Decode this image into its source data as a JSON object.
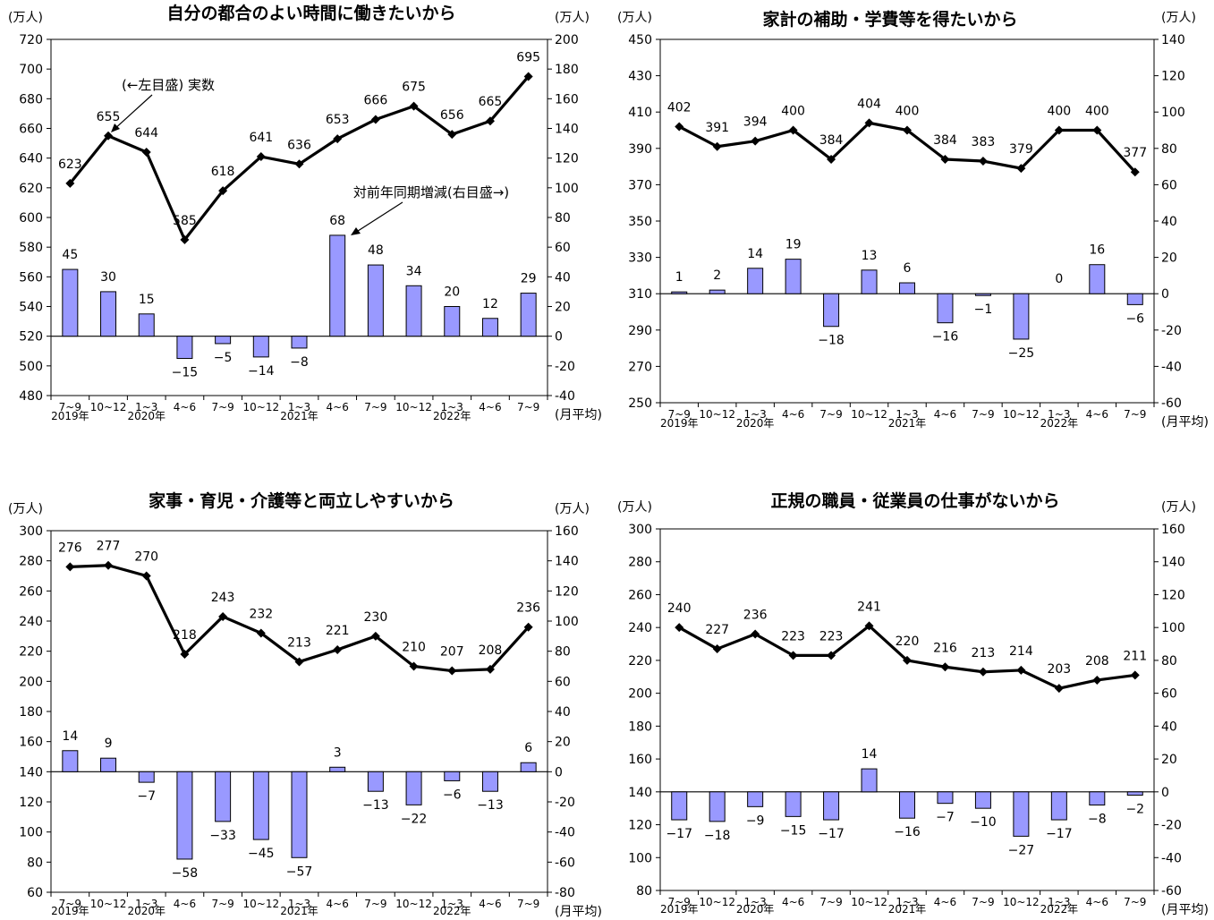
{
  "shared": {
    "unit_left": "(万人)",
    "unit_right": "(万人)",
    "per_month": "(月平均)",
    "quarters": [
      "7~9",
      "10~12",
      "1~3",
      "4~6",
      "7~9",
      "10~12",
      "1~3",
      "4~6",
      "7~9",
      "10~12",
      "1~3",
      "4~6",
      "7~9"
    ],
    "years": [
      {
        "index": 0,
        "label": "2019年"
      },
      {
        "index": 2,
        "label": "2020年"
      },
      {
        "index": 6,
        "label": "2021年"
      },
      {
        "index": 10,
        "label": "2022年"
      }
    ],
    "colors": {
      "bar_fill": "#9999ff",
      "bar_stroke": "#000000",
      "line": "#000000"
    }
  },
  "annotations": {
    "actual_label": "(←左目盛) 実数",
    "change_label": "対前年同期増減(右目盛→)"
  },
  "chart_data": [
    {
      "type": "bar+line",
      "title": "自分の都合のよい時間に働きたいから",
      "left_axis": {
        "min": 480,
        "max": 720,
        "step": 20
      },
      "right_axis": {
        "min": -40,
        "max": 200,
        "step": 20
      },
      "line_values": [
        623,
        655,
        644,
        585,
        618,
        641,
        636,
        653,
        666,
        675,
        656,
        665,
        695
      ],
      "bar_values": [
        45,
        30,
        15,
        -15,
        -5,
        -14,
        -8,
        68,
        48,
        34,
        20,
        12,
        29
      ]
    },
    {
      "type": "bar+line",
      "title": "家計の補助・学費等を得たいから",
      "left_axis": {
        "min": 250,
        "max": 450,
        "step": 20
      },
      "right_axis": {
        "min": -60,
        "max": 140,
        "step": 20
      },
      "line_values": [
        402,
        391,
        394,
        400,
        384,
        404,
        400,
        384,
        383,
        379,
        400,
        400,
        377
      ],
      "bar_values": [
        1,
        2,
        14,
        19,
        -18,
        13,
        6,
        -16,
        -1,
        -25,
        0,
        16,
        -6
      ]
    },
    {
      "type": "bar+line",
      "title": "家事・育児・介護等と両立しやすいから",
      "left_axis": {
        "min": 60,
        "max": 300,
        "step": 20
      },
      "right_axis": {
        "min": -80,
        "max": 160,
        "step": 20
      },
      "line_values": [
        276,
        277,
        270,
        218,
        243,
        232,
        213,
        221,
        230,
        210,
        207,
        208,
        236
      ],
      "bar_values": [
        14,
        9,
        -7,
        -58,
        -33,
        -45,
        -57,
        3,
        -13,
        -22,
        -6,
        -13,
        6
      ]
    },
    {
      "type": "bar+line",
      "title": "正規の職員・従業員の仕事がないから",
      "left_axis": {
        "min": 80,
        "max": 300,
        "step": 20
      },
      "right_axis": {
        "min": -60,
        "max": 160,
        "step": 20
      },
      "line_values": [
        240,
        227,
        236,
        223,
        223,
        241,
        220,
        216,
        213,
        214,
        203,
        208,
        211
      ],
      "bar_values": [
        -17,
        -18,
        -9,
        -15,
        -17,
        14,
        -16,
        -7,
        -10,
        -27,
        -17,
        -8,
        -2
      ]
    }
  ]
}
